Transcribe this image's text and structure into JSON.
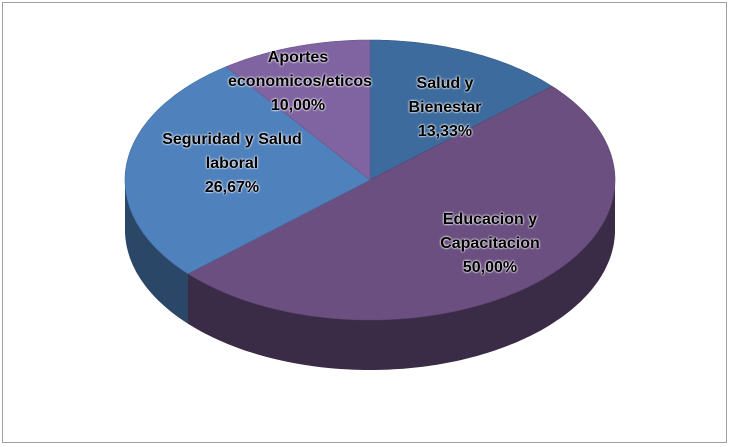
{
  "chart_data": {
    "type": "pie",
    "three_d": true,
    "categories": [
      "Salud y Bienestar",
      "Educacion y Capacitacion",
      "Seguridad y Salud laboral",
      "Aportes economicos/eticos"
    ],
    "values": [
      13.33,
      50.0,
      26.67,
      10.0
    ],
    "value_labels": [
      "13,33%",
      "50,00%",
      "26,67%",
      "10,00%"
    ],
    "colors": [
      "#3d6b9d",
      "#6a4f80",
      "#4f81bd",
      "#8064a2"
    ]
  }
}
